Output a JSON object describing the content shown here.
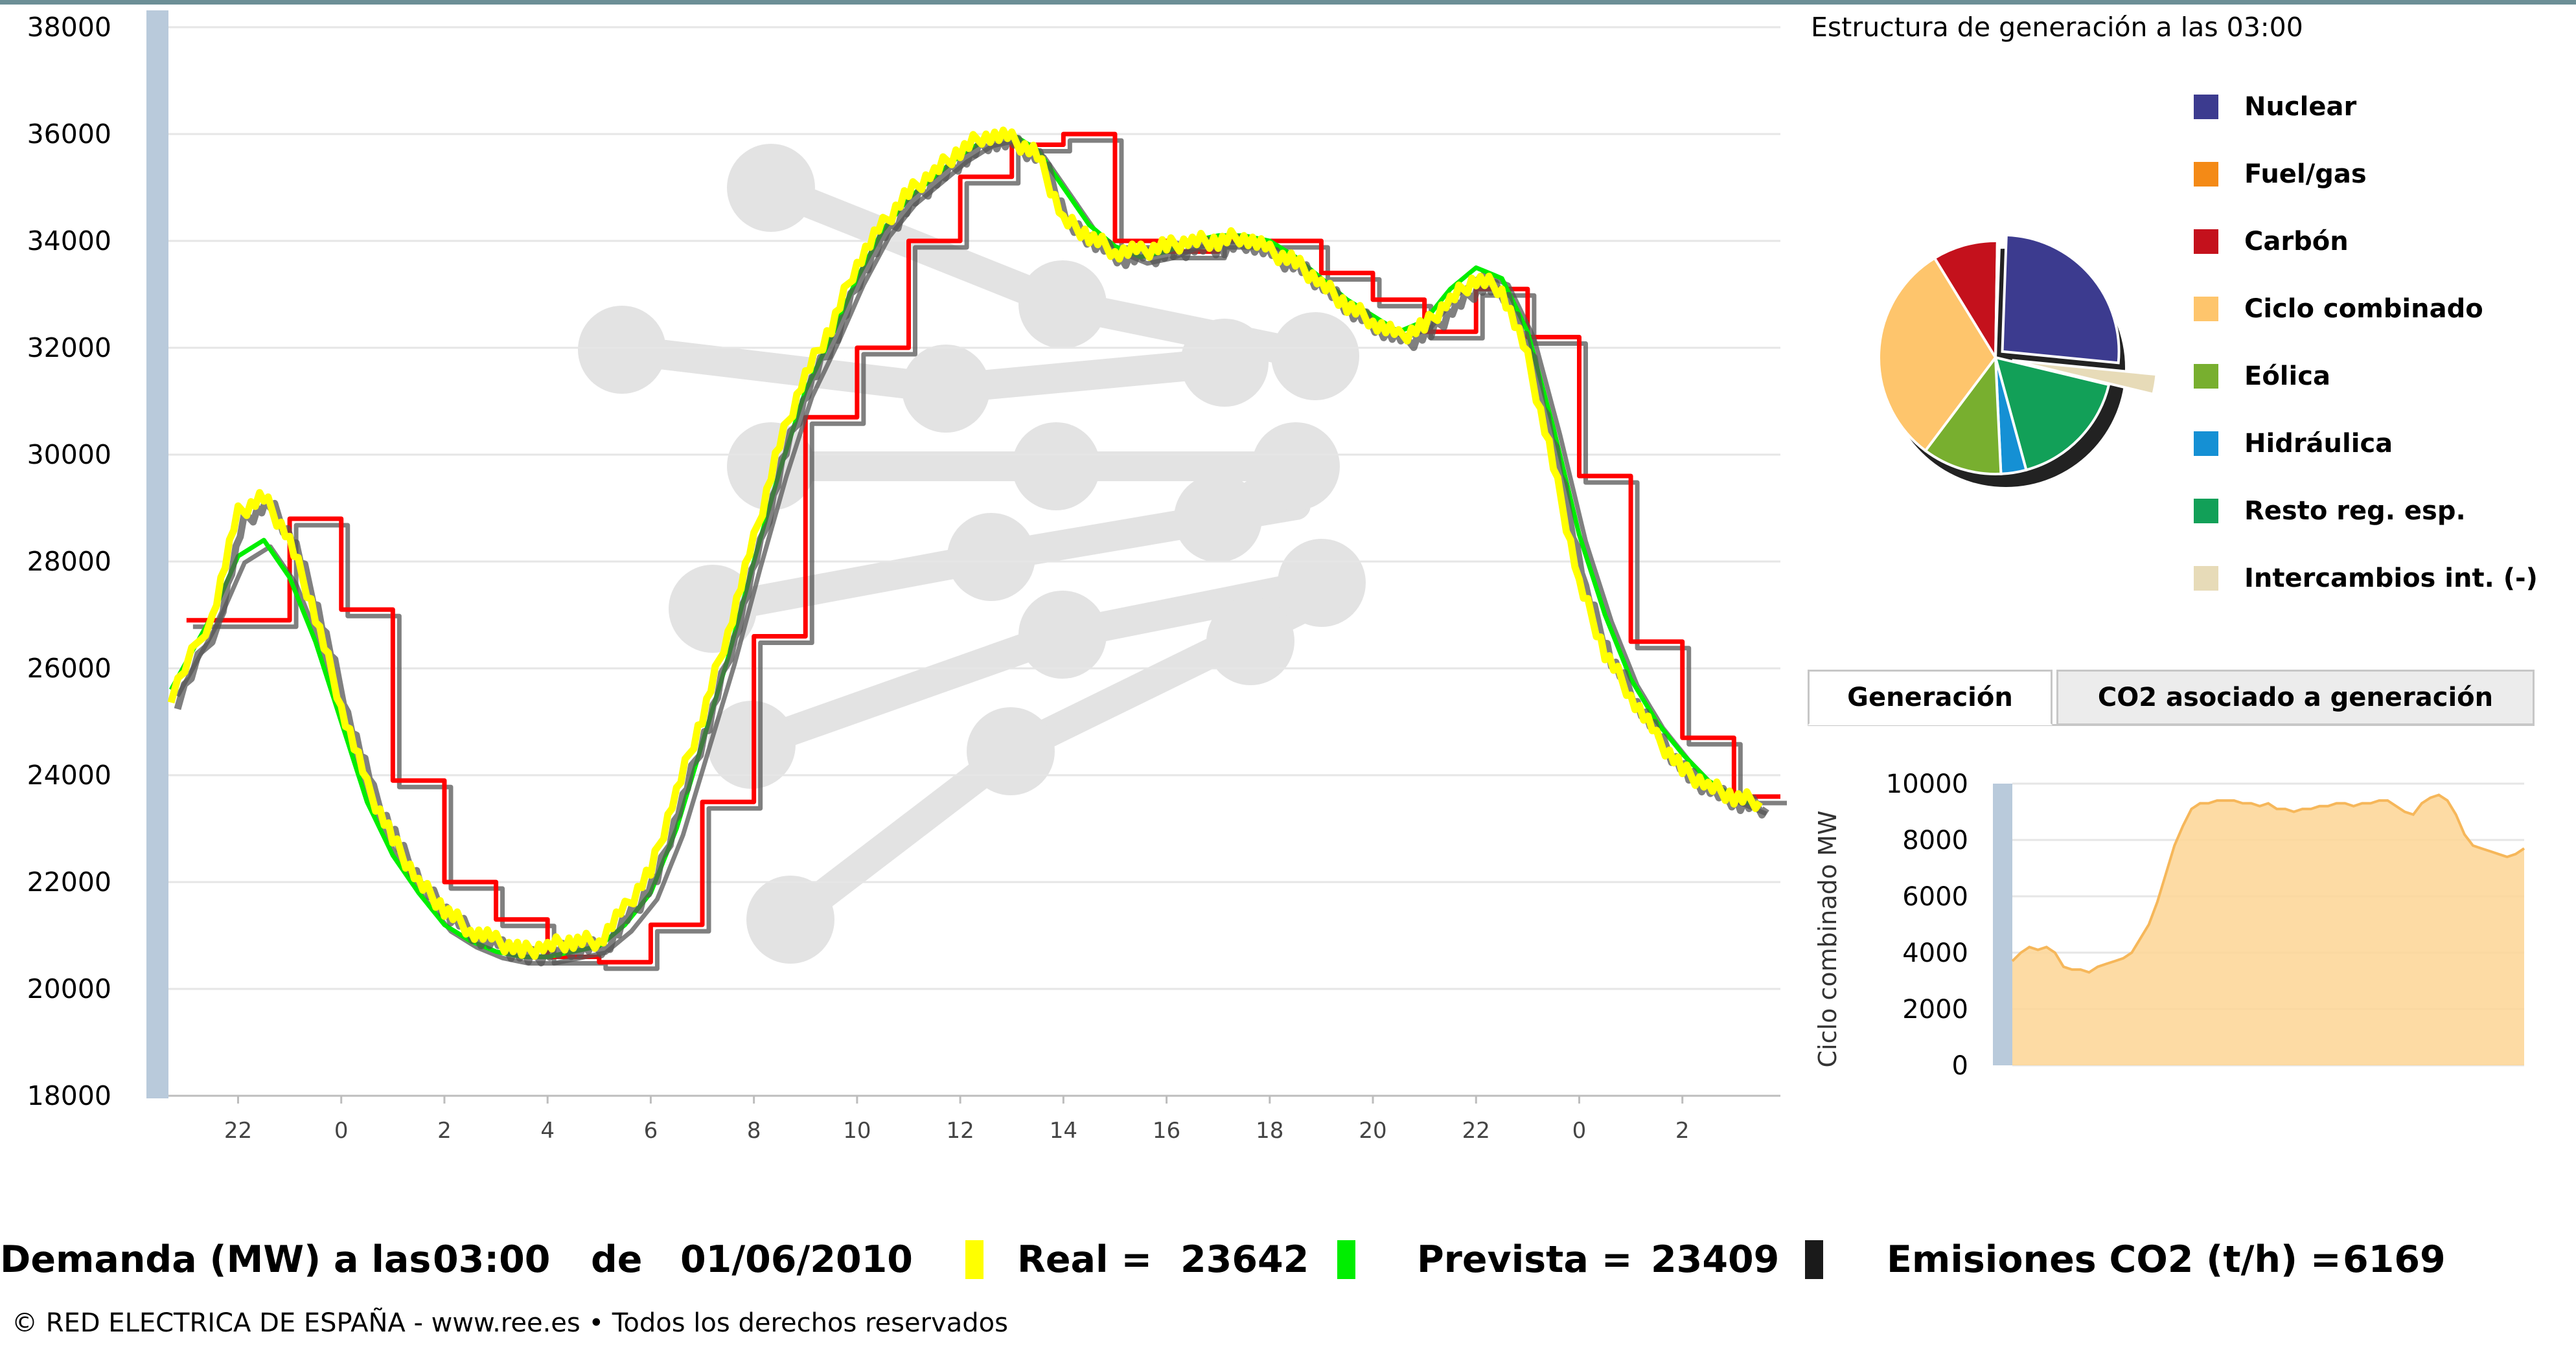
{
  "chart_data": [
    {
      "type": "line",
      "series": [
        {
          "color": "#ff0000",
          "style": "step",
          "x": [
            -3,
            -1,
            0,
            1,
            2,
            3,
            4,
            5,
            6,
            7,
            8,
            9,
            10,
            11,
            12,
            13,
            14,
            15,
            16,
            17,
            18,
            19,
            20,
            21,
            22,
            23,
            24,
            25,
            26,
            27
          ],
          "y": [
            26900,
            28800,
            27100,
            23900,
            22000,
            21300,
            20600,
            20500,
            21200,
            23500,
            26600,
            30700,
            32000,
            34000,
            35200,
            35800,
            36000,
            34000,
            33800,
            34000,
            34000,
            33400,
            32900,
            32300,
            33100,
            32200,
            29600,
            26500,
            24700,
            23600
          ]
        },
        {
          "color": "#00ee00",
          "style": "smooth",
          "x": [
            -3.3,
            -2.5,
            -2,
            -1.5,
            -1,
            -0.5,
            0,
            0.5,
            1,
            1.5,
            2,
            2.5,
            3,
            3.5,
            4,
            4.5,
            5,
            5.5,
            6,
            6.5,
            7,
            7.5,
            8,
            8.5,
            9,
            9.5,
            10,
            10.5,
            11,
            11.5,
            12,
            12.5,
            13,
            13.5,
            14,
            14.5,
            15,
            15.5,
            16,
            16.5,
            17,
            17.5,
            18,
            18.5,
            19,
            19.5,
            20,
            20.5,
            21,
            21.5,
            22,
            22.5,
            23,
            23.5,
            24,
            24.5,
            25,
            25.5,
            26,
            26.5,
            27,
            27.5
          ],
          "y": [
            25600,
            27000,
            28100,
            28400,
            27700,
            26500,
            25000,
            23500,
            22500,
            21800,
            21200,
            20900,
            20700,
            20600,
            20600,
            20700,
            20800,
            21200,
            21800,
            23000,
            24600,
            26200,
            28000,
            29700,
            31200,
            32200,
            33300,
            34200,
            34800,
            35200,
            35600,
            35900,
            36000,
            35700,
            35000,
            34300,
            33900,
            33700,
            33800,
            34000,
            34100,
            34100,
            34000,
            33700,
            33300,
            32900,
            32600,
            32300,
            32500,
            33100,
            33500,
            33300,
            32300,
            30500,
            28500,
            27000,
            25800,
            25000,
            24400,
            23900,
            23600,
            23400
          ]
        },
        {
          "color": "#ffff00",
          "style": "noisy",
          "x": [
            -3.3,
            -2.5,
            -2,
            -1.5,
            -1,
            -0.5,
            0,
            0.5,
            1,
            1.5,
            2,
            2.5,
            3,
            3.5,
            4,
            4.5,
            5,
            5.5,
            6,
            6.5,
            7,
            7.5,
            8,
            8.5,
            9,
            9.5,
            10,
            10.5,
            11,
            11.5,
            12,
            12.5,
            13,
            13.5,
            14,
            14.5,
            15,
            15.5,
            16,
            16.5,
            17,
            17.5,
            18,
            18.5,
            19,
            19.5,
            20,
            20.5,
            21,
            21.5,
            22,
            22.5,
            23,
            23.5,
            24,
            24.5,
            25,
            25.5,
            26,
            26.5,
            27,
            27.5
          ],
          "y": [
            25500,
            27000,
            28900,
            29200,
            28400,
            27000,
            25300,
            23800,
            22800,
            22000,
            21500,
            21100,
            20900,
            20700,
            20800,
            20900,
            20900,
            21500,
            22200,
            23700,
            25100,
            26700,
            28400,
            30200,
            31500,
            32400,
            33600,
            34300,
            34900,
            35300,
            35700,
            36000,
            35900,
            35600,
            34400,
            34100,
            33800,
            33800,
            33900,
            34000,
            34000,
            34100,
            33800,
            33600,
            33200,
            32800,
            32500,
            32200,
            32400,
            32900,
            33300,
            33100,
            31800,
            29800,
            27600,
            26300,
            25500,
            24700,
            24100,
            23800,
            23600,
            23500
          ]
        }
      ],
      "x_tick_labels": [
        "22",
        "0",
        "2",
        "4",
        "6",
        "8",
        "10",
        "12",
        "14",
        "16",
        "18",
        "20",
        "22",
        "0",
        "2"
      ],
      "y_ticks": [
        "18000",
        "20000",
        "22000",
        "24000",
        "26000",
        "28000",
        "30000",
        "32000",
        "34000",
        "36000",
        "38000"
      ],
      "ylim": [
        18000,
        38000
      ],
      "grid": true
    },
    {
      "type": "pie",
      "title": "Estructura de generación a las 03:00",
      "slices": [
        {
          "label": "Nuclear",
          "value": 26,
          "color": "#3c3b8f"
        },
        {
          "label": "Fuel/gas",
          "value": 0.3,
          "color": "#f48a16"
        },
        {
          "label": "Carbón",
          "value": 9,
          "color": "#c4111c"
        },
        {
          "label": "Ciclo combinado",
          "value": 31,
          "color": "#fec56c"
        },
        {
          "label": "Eólica",
          "value": 11,
          "color": "#78af2f"
        },
        {
          "label": "Hidráulica",
          "value": 3.5,
          "color": "#1590d4"
        },
        {
          "label": "Resto reg. esp.",
          "value": 17,
          "color": "#12a058"
        },
        {
          "label": "Intercambios int. (-)",
          "value": 2.2,
          "color": "#e7dbb8"
        }
      ]
    },
    {
      "type": "area",
      "ylabel": "Ciclo combinado MW",
      "y_ticks": [
        "0",
        "2000",
        "4000",
        "6000",
        "8000",
        "10000"
      ],
      "ylim": [
        0,
        10000
      ],
      "color": "#fdd594",
      "x": [
        0,
        1,
        2,
        3,
        4,
        5,
        6,
        7,
        8,
        9,
        10,
        11,
        12,
        13,
        14,
        15,
        16,
        17,
        18,
        19,
        20,
        21,
        22,
        23,
        24,
        25,
        26,
        27,
        28,
        29,
        30,
        31,
        32,
        33,
        34,
        35,
        36,
        37,
        38,
        39,
        40,
        41,
        42,
        43,
        44,
        45,
        46,
        47,
        48,
        49,
        50,
        51,
        52,
        53,
        54,
        55,
        56,
        57,
        58,
        59,
        60
      ],
      "y": [
        3700,
        4000,
        4200,
        4100,
        4200,
        4000,
        3500,
        3400,
        3400,
        3300,
        3500,
        3600,
        3700,
        3800,
        4000,
        4500,
        5000,
        5800,
        6800,
        7800,
        8500,
        9100,
        9300,
        9300,
        9400,
        9400,
        9400,
        9300,
        9300,
        9200,
        9300,
        9100,
        9100,
        9000,
        9100,
        9100,
        9200,
        9200,
        9300,
        9300,
        9200,
        9300,
        9300,
        9400,
        9400,
        9200,
        9000,
        8900,
        9300,
        9500,
        9600,
        9400,
        8900,
        8200,
        7800,
        7700,
        7600,
        7500,
        7400,
        7500,
        7700
      ]
    }
  ],
  "tabs": {
    "generacion": "Generación",
    "co2": "CO2 asociado a generación"
  },
  "footer": {
    "demanda_label": "Demanda (MW) a las",
    "time": "03:00",
    "de": "de",
    "date": "01/06/2010",
    "real_label": "Real =",
    "real_value": "23642",
    "prevista_label": "Prevista =",
    "prevista_value": "23409",
    "emisiones_label": "Emisiones CO2 (t/h) =",
    "emisiones_value": "6169",
    "copyright": "© RED ELECTRICA DE ESPAÑA - www.ree.es • Todos los derechos reservados",
    "colors": {
      "real": "#ffff00",
      "prevista": "#00ee00",
      "emisiones": "#1a1a1a"
    }
  }
}
